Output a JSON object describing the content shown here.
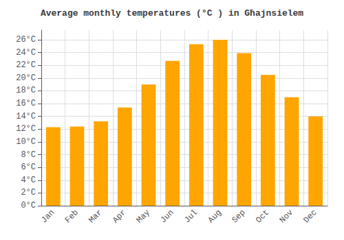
{
  "chart_data": {
    "type": "bar",
    "title": "Average monthly temperatures (°C ) in Għajnsielem",
    "categories": [
      "Jan",
      "Feb",
      "Mar",
      "Apr",
      "May",
      "Jun",
      "Jul",
      "Aug",
      "Sep",
      "Oct",
      "Nov",
      "Dec"
    ],
    "values": [
      12.3,
      12.4,
      13.2,
      15.4,
      19.0,
      22.7,
      25.3,
      26.0,
      23.9,
      20.5,
      17.0,
      14.0
    ],
    "color": "#FFA500",
    "ylim": [
      0,
      27.5
    ],
    "yticks": [
      {
        "value": 0,
        "label": "0°C"
      },
      {
        "value": 2,
        "label": "2°C"
      },
      {
        "value": 4,
        "label": "4°C"
      },
      {
        "value": 6,
        "label": "6°C"
      },
      {
        "value": 8,
        "label": "8°C"
      },
      {
        "value": 10,
        "label": "10°C"
      },
      {
        "value": 12,
        "label": "12°C"
      },
      {
        "value": 14,
        "label": "14°C"
      },
      {
        "value": 16,
        "label": "16°C"
      },
      {
        "value": 18,
        "label": "18°C"
      },
      {
        "value": 20,
        "label": "20°C"
      },
      {
        "value": 22,
        "label": "22°C"
      },
      {
        "value": 24,
        "label": "24°C"
      },
      {
        "value": 26,
        "label": "26°C"
      }
    ],
    "grid": true
  }
}
